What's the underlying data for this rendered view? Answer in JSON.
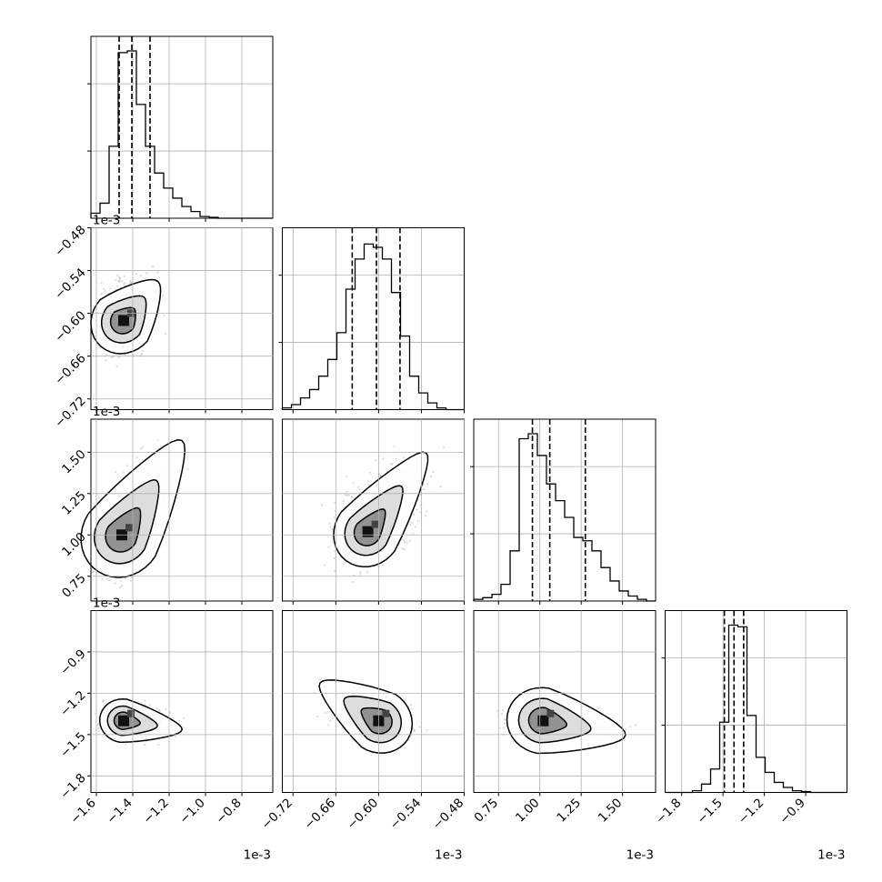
{
  "chart_data": {
    "type": "corner",
    "grid": true,
    "params": [
      {
        "range": [
          -1.63,
          -0.63
        ],
        "ticks": [
          -1.6,
          -1.4,
          -1.2,
          -1.0,
          -0.8
        ],
        "tick_labels": [
          "−1.6",
          "−1.4",
          "−1.2",
          "−1.0",
          "−0.8"
        ],
        "offset": "1e-3",
        "quantiles": [
          -1.475,
          -1.405,
          -1.305
        ],
        "mode": -1.43,
        "hist_bins": [
          0.03,
          0.09,
          0.43,
          0.99,
          1.0,
          0.68,
          0.43,
          0.27,
          0.18,
          0.12,
          0.07,
          0.04,
          0.01,
          0.005,
          0.0,
          0.0,
          0.0,
          0.0,
          0.0,
          0.0
        ]
      },
      {
        "range": [
          -0.735,
          -0.48
        ],
        "ticks": [
          -0.72,
          -0.66,
          -0.6,
          -0.54,
          -0.48
        ],
        "tick_labels": [
          "−0.72",
          "−0.66",
          "−0.60",
          "−0.54",
          "−0.48"
        ],
        "offset": "1e-3",
        "quantiles": [
          -0.637,
          -0.603,
          -0.57
        ],
        "mode": -0.6,
        "hist_bins": [
          0.01,
          0.03,
          0.07,
          0.12,
          0.2,
          0.3,
          0.46,
          0.72,
          0.9,
          0.99,
          0.97,
          0.9,
          0.7,
          0.44,
          0.2,
          0.1,
          0.04,
          0.01,
          0.0,
          0.0
        ]
      },
      {
        "range": [
          0.6,
          1.7
        ],
        "ticks": [
          0.75,
          1.0,
          1.25,
          1.5
        ],
        "tick_labels": [
          "0.75",
          "1.00",
          "1.25",
          "1.50"
        ],
        "offset": "1e-3",
        "quantiles": [
          0.955,
          1.06,
          1.275
        ],
        "mode": 1.02,
        "hist_bins": [
          0.01,
          0.02,
          0.04,
          0.1,
          0.3,
          0.97,
          1.0,
          0.87,
          0.7,
          0.6,
          0.5,
          0.38,
          0.36,
          0.3,
          0.2,
          0.12,
          0.06,
          0.03,
          0.01,
          0.0
        ]
      },
      {
        "range": [
          -1.92,
          -0.6
        ],
        "ticks": [
          -1.8,
          -1.5,
          -1.2,
          -0.9
        ],
        "tick_labels": [
          "−1.8",
          "−1.5",
          "−1.2",
          "−0.9"
        ],
        "offset": "1e-3",
        "quantiles": [
          -1.49,
          -1.42,
          -1.35
        ],
        "mode": -1.41,
        "hist_bins": [
          0.0,
          0.0,
          0.0,
          0.01,
          0.05,
          0.14,
          0.42,
          1.0,
          0.99,
          0.46,
          0.21,
          0.12,
          0.06,
          0.03,
          0.01,
          0.005,
          0.0,
          0.0,
          0.0,
          0.0
        ]
      }
    ],
    "pairs": [
      {
        "i": 1,
        "j": 0,
        "mode": [
          -1.45,
          -0.61
        ],
        "peak": [
          -1.33,
          -0.575
        ],
        "spread": [
          0.06,
          0.022
        ]
      },
      {
        "i": 2,
        "j": 0,
        "mode": [
          -1.46,
          1.0
        ],
        "peak": [
          -1.2,
          1.45
        ],
        "spread": [
          0.05,
          0.12
        ]
      },
      {
        "i": 2,
        "j": 1,
        "mode": [
          -0.615,
          1.02
        ],
        "peak": [
          -0.55,
          1.4
        ],
        "spread": [
          0.022,
          0.1
        ]
      },
      {
        "i": 3,
        "j": 0,
        "mode": [
          -1.45,
          -1.4
        ],
        "peak": [
          -1.2,
          -1.45
        ],
        "spread": [
          0.06,
          0.06
        ]
      },
      {
        "i": 3,
        "j": 1,
        "mode": [
          -0.6,
          -1.4
        ],
        "peak": [
          -0.66,
          -1.2
        ],
        "spread": [
          0.022,
          0.05
        ]
      },
      {
        "i": 3,
        "j": 2,
        "mode": [
          1.02,
          -1.4
        ],
        "peak": [
          1.4,
          -1.48
        ],
        "spread": [
          0.1,
          0.05
        ]
      }
    ]
  }
}
